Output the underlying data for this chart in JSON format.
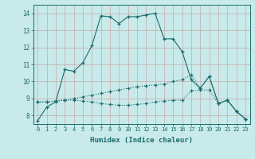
{
  "xlabel": "Humidex (Indice chaleur)",
  "background_color": "#c8eaea",
  "grid_color": "#d4e8e8",
  "line_color": "#1a6b6b",
  "xlim": [
    -0.5,
    23.5
  ],
  "ylim": [
    7.5,
    14.5
  ],
  "xticks": [
    0,
    1,
    2,
    3,
    4,
    5,
    6,
    7,
    8,
    9,
    10,
    11,
    12,
    13,
    14,
    15,
    16,
    17,
    18,
    19,
    20,
    21,
    22,
    23
  ],
  "yticks": [
    8,
    9,
    10,
    11,
    12,
    13,
    14
  ],
  "series1_x": [
    0,
    1,
    2,
    3,
    4,
    5,
    6,
    7,
    8,
    9,
    10,
    11,
    12,
    13,
    14,
    15,
    16,
    17,
    18,
    19,
    20,
    21,
    22,
    23
  ],
  "series1_y": [
    7.7,
    8.5,
    8.8,
    10.7,
    10.6,
    11.1,
    12.1,
    13.85,
    13.8,
    13.4,
    13.8,
    13.8,
    13.9,
    14.0,
    12.5,
    12.5,
    11.75,
    10.1,
    9.6,
    10.3,
    8.7,
    8.9,
    8.25,
    7.8
  ],
  "series2_x": [
    0,
    1,
    2,
    3,
    4,
    5,
    6,
    7,
    8,
    9,
    10,
    11,
    12,
    13,
    14,
    15,
    16,
    17,
    18,
    19,
    20,
    21,
    22,
    23
  ],
  "series2_y": [
    8.8,
    8.8,
    8.85,
    8.9,
    9.0,
    9.1,
    9.2,
    9.3,
    9.4,
    9.5,
    9.6,
    9.7,
    9.75,
    9.8,
    9.85,
    10.0,
    10.1,
    10.4,
    9.6,
    10.3,
    8.7,
    8.9,
    8.25,
    7.8
  ],
  "series3_x": [
    0,
    1,
    2,
    3,
    4,
    5,
    6,
    7,
    8,
    9,
    10,
    11,
    12,
    13,
    14,
    15,
    16,
    17,
    18,
    19,
    20,
    21,
    22,
    23
  ],
  "series3_y": [
    8.8,
    8.8,
    8.85,
    8.9,
    8.9,
    8.85,
    8.8,
    8.7,
    8.65,
    8.6,
    8.6,
    8.65,
    8.7,
    8.8,
    8.85,
    8.9,
    8.9,
    9.45,
    9.5,
    9.5,
    8.7,
    8.9,
    8.25,
    7.8
  ]
}
